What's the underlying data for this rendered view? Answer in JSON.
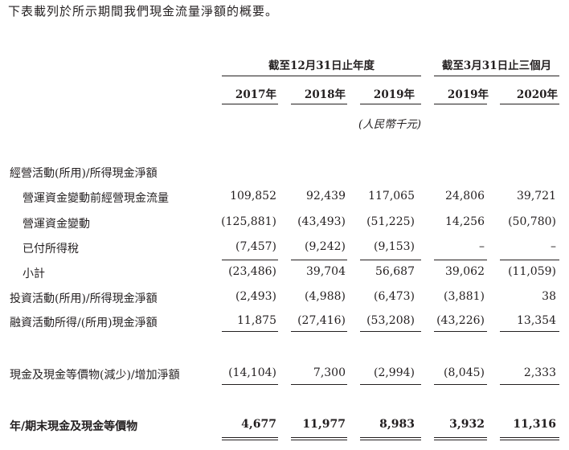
{
  "intro": "下表載列於所示期間我們現金流量淨額的概要。",
  "header": {
    "group_year": "截至12月31日止年度",
    "group_quarter": "截至3月31日止三個月",
    "years": [
      "2017年",
      "2018年",
      "2019年",
      "2019年",
      "2020年"
    ],
    "unit": "(人民幣千元)"
  },
  "rows": [
    {
      "label": "經營活動(所用)/所得現金淨額",
      "values": [
        "",
        "",
        "",
        "",
        ""
      ]
    },
    {
      "label": "營運資金變動前經營現金流量",
      "values": [
        "109,852",
        "92,439",
        "117,065",
        "24,806",
        "39,721"
      ]
    },
    {
      "label": "營運資金變動",
      "values": [
        "(125,881)",
        "(43,493)",
        "(51,225)",
        "14,256",
        "(50,780)"
      ]
    },
    {
      "label": "已付所得稅",
      "values": [
        "(7,457)",
        "(9,242)",
        "(9,153)",
        "–",
        "–"
      ]
    },
    {
      "label": "小計",
      "values": [
        "(23,486)",
        "39,704",
        "56,687",
        "39,062",
        "(11,059)"
      ]
    },
    {
      "label": "投資活動(所用)/所得現金淨額",
      "values": [
        "(2,493)",
        "(4,988)",
        "(6,473)",
        "(3,881)",
        "38"
      ]
    },
    {
      "label": "融資活動所得/(所用)現金淨額",
      "values": [
        "11,875",
        "(27,416)",
        "(53,208)",
        "(43,226)",
        "13,354"
      ]
    },
    {
      "label": "現金及現金等價物(減少)/增加淨額",
      "values": [
        "(14,104)",
        "7,300",
        "(2,994)",
        "(8,045)",
        "2,333"
      ]
    },
    {
      "label": "年/期末現金及現金等價物",
      "values": [
        "4,677",
        "11,977",
        "8,983",
        "3,932",
        "11,316"
      ]
    }
  ]
}
